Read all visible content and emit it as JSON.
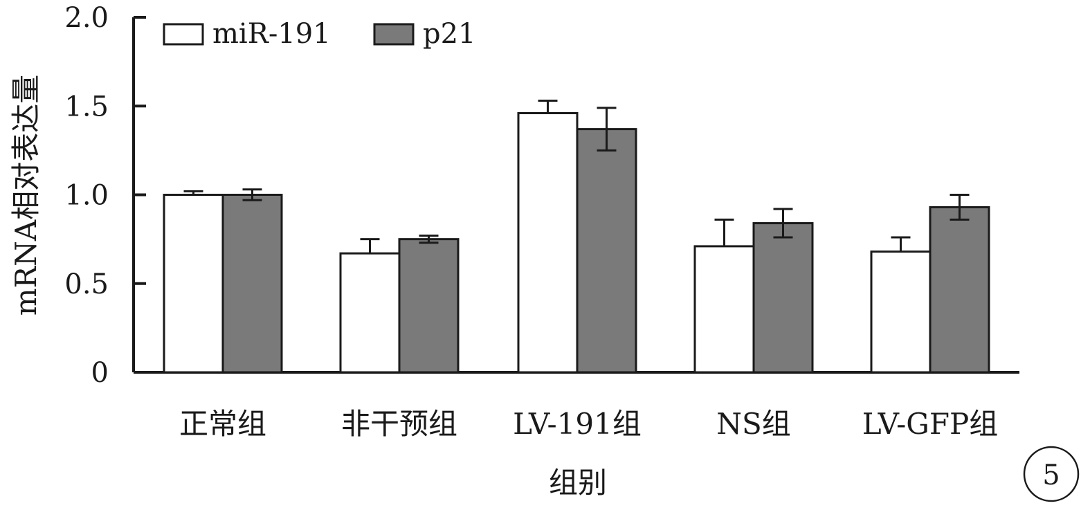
{
  "chart_data": {
    "type": "bar",
    "categories": [
      "正常组",
      "非干预组",
      "LV-191组",
      "NS组",
      "LV-GFP组"
    ],
    "series": [
      {
        "name": "miR-191",
        "values": [
          1.0,
          0.67,
          1.46,
          0.71,
          0.68
        ],
        "errors": [
          0.02,
          0.08,
          0.07,
          0.15,
          0.08
        ],
        "color": "#ffffff"
      },
      {
        "name": "p21",
        "values": [
          1.0,
          0.75,
          1.37,
          0.84,
          0.93
        ],
        "errors": [
          0.03,
          0.02,
          0.12,
          0.08,
          0.07
        ],
        "color": "#7a7a7a"
      }
    ],
    "xlabel": "组别",
    "ylabel": "mRNA相对表达量",
    "ylim": [
      0,
      2.0
    ],
    "yticks": [
      0,
      0.5,
      1.0,
      1.5,
      2.0
    ],
    "ytick_labels": [
      "0",
      "0.5",
      "1.0",
      "1.5",
      "2.0"
    ],
    "legend_position": "top-left",
    "grid": false
  },
  "panel_badge": "5"
}
